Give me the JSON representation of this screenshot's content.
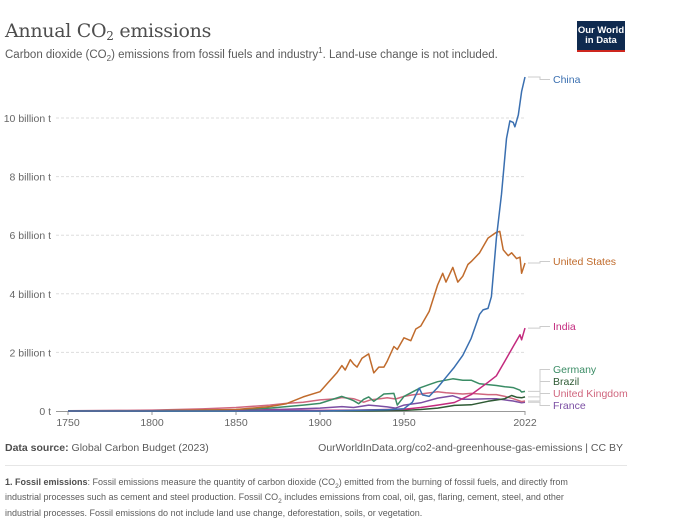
{
  "header": {
    "title_prefix": "Annual CO",
    "title_sub": "2",
    "title_suffix": " emissions",
    "subtitle_a": "Carbon dioxide (CO",
    "subtitle_sub": "2",
    "subtitle_b": ") emissions from fossil fuels and industry",
    "subtitle_sup": "1",
    "subtitle_c": ". Land-use change is not included.",
    "logo_line1": "Our World",
    "logo_line2": "in Data"
  },
  "footer": {
    "source_label": "Data source:",
    "source_value": " Global Carbon Budget (2023)",
    "url": "OurWorldInData.org/co2-and-greenhouse-gas-emissions | CC BY",
    "footnote_label": "1. Fossil emissions",
    "footnote_a": ": Fossil emissions measure the quantity of carbon dioxide (CO",
    "footnote_sub1": "2",
    "footnote_b": ") emitted from the burning of fossil fuels, and directly from industrial processes such as cement and steel production. Fossil CO",
    "footnote_sub2": "2",
    "footnote_c": " includes emissions from coal, oil, gas, flaring, cement, steel, and other industrial processes. Fossil emissions do not include land use change, deforestation, soils, or vegetation."
  },
  "chart_data": {
    "type": "line",
    "title": "Annual CO₂ emissions",
    "subtitle": "Carbon dioxide (CO₂) emissions from fossil fuels and industry. Land-use change is not included.",
    "xlabel": "",
    "ylabel": "",
    "xlim": [
      1750,
      2022
    ],
    "ylim": [
      0,
      11.4
    ],
    "grid": "horizontal-dashed",
    "legend_placement": "right-inline",
    "x_ticks": [
      1750,
      1800,
      1850,
      1900,
      1950,
      2022
    ],
    "x_tick_labels": [
      "1750",
      "1800",
      "1850",
      "1900",
      "1950",
      "2022"
    ],
    "y_ticks": [
      0,
      2,
      4,
      6,
      8,
      10
    ],
    "y_tick_labels": [
      "0 t",
      "2 billion t",
      "4 billion t",
      "6 billion t",
      "8 billion t",
      "10 billion t"
    ],
    "unit": "billion tonnes",
    "series": [
      {
        "name": "China",
        "color": "#3a6fb0",
        "points": [
          [
            1750,
            0
          ],
          [
            1900,
            0.001
          ],
          [
            1920,
            0.02
          ],
          [
            1940,
            0.04
          ],
          [
            1950,
            0.08
          ],
          [
            1955,
            0.3
          ],
          [
            1959,
            0.78
          ],
          [
            1961,
            0.55
          ],
          [
            1965,
            0.5
          ],
          [
            1970,
            0.8
          ],
          [
            1975,
            1.15
          ],
          [
            1980,
            1.5
          ],
          [
            1985,
            1.9
          ],
          [
            1990,
            2.48
          ],
          [
            1995,
            3.3
          ],
          [
            1997,
            3.45
          ],
          [
            2000,
            3.5
          ],
          [
            2002,
            3.9
          ],
          [
            2005,
            5.9
          ],
          [
            2008,
            7.4
          ],
          [
            2011,
            9.3
          ],
          [
            2013,
            9.9
          ],
          [
            2015,
            9.85
          ],
          [
            2016,
            9.7
          ],
          [
            2018,
            10.1
          ],
          [
            2020,
            10.9
          ],
          [
            2022,
            11.4
          ]
        ]
      },
      {
        "name": "United States",
        "color": "#c06b2c",
        "points": [
          [
            1750,
            0
          ],
          [
            1800,
            0.002
          ],
          [
            1850,
            0.05
          ],
          [
            1870,
            0.15
          ],
          [
            1880,
            0.25
          ],
          [
            1890,
            0.48
          ],
          [
            1900,
            0.66
          ],
          [
            1905,
            0.98
          ],
          [
            1910,
            1.3
          ],
          [
            1913,
            1.55
          ],
          [
            1915,
            1.4
          ],
          [
            1918,
            1.75
          ],
          [
            1920,
            1.6
          ],
          [
            1922,
            1.5
          ],
          [
            1925,
            1.8
          ],
          [
            1929,
            1.95
          ],
          [
            1930,
            1.72
          ],
          [
            1932,
            1.3
          ],
          [
            1935,
            1.5
          ],
          [
            1938,
            1.5
          ],
          [
            1940,
            1.7
          ],
          [
            1944,
            2.2
          ],
          [
            1946,
            2.1
          ],
          [
            1950,
            2.5
          ],
          [
            1954,
            2.4
          ],
          [
            1957,
            2.8
          ],
          [
            1960,
            2.9
          ],
          [
            1965,
            3.4
          ],
          [
            1970,
            4.3
          ],
          [
            1973,
            4.7
          ],
          [
            1975,
            4.4
          ],
          [
            1979,
            4.9
          ],
          [
            1982,
            4.4
          ],
          [
            1985,
            4.6
          ],
          [
            1988,
            5.0
          ],
          [
            1990,
            5.1
          ],
          [
            1995,
            5.4
          ],
          [
            2000,
            5.9
          ],
          [
            2005,
            6.1
          ],
          [
            2007,
            6.13
          ],
          [
            2009,
            5.5
          ],
          [
            2012,
            5.3
          ],
          [
            2014,
            5.4
          ],
          [
            2017,
            5.2
          ],
          [
            2019,
            5.25
          ],
          [
            2020,
            4.7
          ],
          [
            2022,
            5.05
          ]
        ]
      },
      {
        "name": "India",
        "color": "#c32a7e",
        "points": [
          [
            1750,
            0
          ],
          [
            1900,
            0.02
          ],
          [
            1920,
            0.03
          ],
          [
            1950,
            0.06
          ],
          [
            1960,
            0.12
          ],
          [
            1970,
            0.2
          ],
          [
            1980,
            0.29
          ],
          [
            1990,
            0.56
          ],
          [
            2000,
            0.98
          ],
          [
            2005,
            1.2
          ],
          [
            2010,
            1.7
          ],
          [
            2015,
            2.2
          ],
          [
            2019,
            2.6
          ],
          [
            2020,
            2.43
          ],
          [
            2022,
            2.83
          ]
        ]
      },
      {
        "name": "Germany",
        "color": "#3a8c65",
        "points": [
          [
            1750,
            0
          ],
          [
            1800,
            0.01
          ],
          [
            1850,
            0.04
          ],
          [
            1870,
            0.1
          ],
          [
            1890,
            0.2
          ],
          [
            1900,
            0.26
          ],
          [
            1913,
            0.5
          ],
          [
            1918,
            0.4
          ],
          [
            1920,
            0.35
          ],
          [
            1923,
            0.25
          ],
          [
            1926,
            0.4
          ],
          [
            1929,
            0.48
          ],
          [
            1932,
            0.33
          ],
          [
            1938,
            0.58
          ],
          [
            1944,
            0.6
          ],
          [
            1946,
            0.2
          ],
          [
            1950,
            0.5
          ],
          [
            1960,
            0.8
          ],
          [
            1965,
            0.9
          ],
          [
            1970,
            1.0
          ],
          [
            1979,
            1.1
          ],
          [
            1985,
            1.05
          ],
          [
            1990,
            1.05
          ],
          [
            1995,
            0.93
          ],
          [
            2000,
            0.9
          ],
          [
            2005,
            0.87
          ],
          [
            2010,
            0.83
          ],
          [
            2015,
            0.8
          ],
          [
            2019,
            0.71
          ],
          [
            2020,
            0.65
          ],
          [
            2022,
            0.67
          ]
        ]
      },
      {
        "name": "Brazil",
        "color": "#2e5a34",
        "points": [
          [
            1750,
            0
          ],
          [
            1900,
            0.002
          ],
          [
            1930,
            0.005
          ],
          [
            1950,
            0.02
          ],
          [
            1960,
            0.05
          ],
          [
            1970,
            0.1
          ],
          [
            1980,
            0.19
          ],
          [
            1990,
            0.21
          ],
          [
            2000,
            0.33
          ],
          [
            2010,
            0.42
          ],
          [
            2014,
            0.53
          ],
          [
            2017,
            0.47
          ],
          [
            2020,
            0.45
          ],
          [
            2022,
            0.48
          ]
        ]
      },
      {
        "name": "United Kingdom",
        "color": "#d0667e",
        "points": [
          [
            1750,
            0.01
          ],
          [
            1780,
            0.02
          ],
          [
            1800,
            0.03
          ],
          [
            1830,
            0.07
          ],
          [
            1850,
            0.12
          ],
          [
            1870,
            0.2
          ],
          [
            1880,
            0.26
          ],
          [
            1890,
            0.3
          ],
          [
            1900,
            0.38
          ],
          [
            1910,
            0.42
          ],
          [
            1913,
            0.46
          ],
          [
            1920,
            0.42
          ],
          [
            1926,
            0.3
          ],
          [
            1930,
            0.38
          ],
          [
            1940,
            0.45
          ],
          [
            1945,
            0.41
          ],
          [
            1950,
            0.5
          ],
          [
            1955,
            0.55
          ],
          [
            1960,
            0.58
          ],
          [
            1970,
            0.66
          ],
          [
            1975,
            0.62
          ],
          [
            1980,
            0.6
          ],
          [
            1985,
            0.58
          ],
          [
            1990,
            0.6
          ],
          [
            2000,
            0.56
          ],
          [
            2005,
            0.56
          ],
          [
            2010,
            0.5
          ],
          [
            2015,
            0.42
          ],
          [
            2020,
            0.32
          ],
          [
            2022,
            0.34
          ]
        ]
      },
      {
        "name": "France",
        "color": "#7b4ea3",
        "points": [
          [
            1750,
            0
          ],
          [
            1800,
            0.005
          ],
          [
            1850,
            0.02
          ],
          [
            1880,
            0.06
          ],
          [
            1900,
            0.1
          ],
          [
            1913,
            0.15
          ],
          [
            1920,
            0.12
          ],
          [
            1929,
            0.2
          ],
          [
            1935,
            0.17
          ],
          [
            1940,
            0.14
          ],
          [
            1945,
            0.1
          ],
          [
            1950,
            0.2
          ],
          [
            1960,
            0.28
          ],
          [
            1970,
            0.44
          ],
          [
            1979,
            0.52
          ],
          [
            1985,
            0.4
          ],
          [
            1990,
            0.4
          ],
          [
            2000,
            0.42
          ],
          [
            2005,
            0.42
          ],
          [
            2010,
            0.38
          ],
          [
            2015,
            0.34
          ],
          [
            2020,
            0.28
          ],
          [
            2022,
            0.3
          ]
        ]
      }
    ],
    "legend_entries": [
      {
        "name": "China",
        "color": "#3a6fb0"
      },
      {
        "name": "United States",
        "color": "#c06b2c"
      },
      {
        "name": "India",
        "color": "#c32a7e"
      },
      {
        "name": "Germany",
        "color": "#3a8c65"
      },
      {
        "name": "Brazil",
        "color": "#2e5a34"
      },
      {
        "name": "United Kingdom",
        "color": "#d0667e"
      },
      {
        "name": "France",
        "color": "#7b4ea3"
      }
    ]
  }
}
